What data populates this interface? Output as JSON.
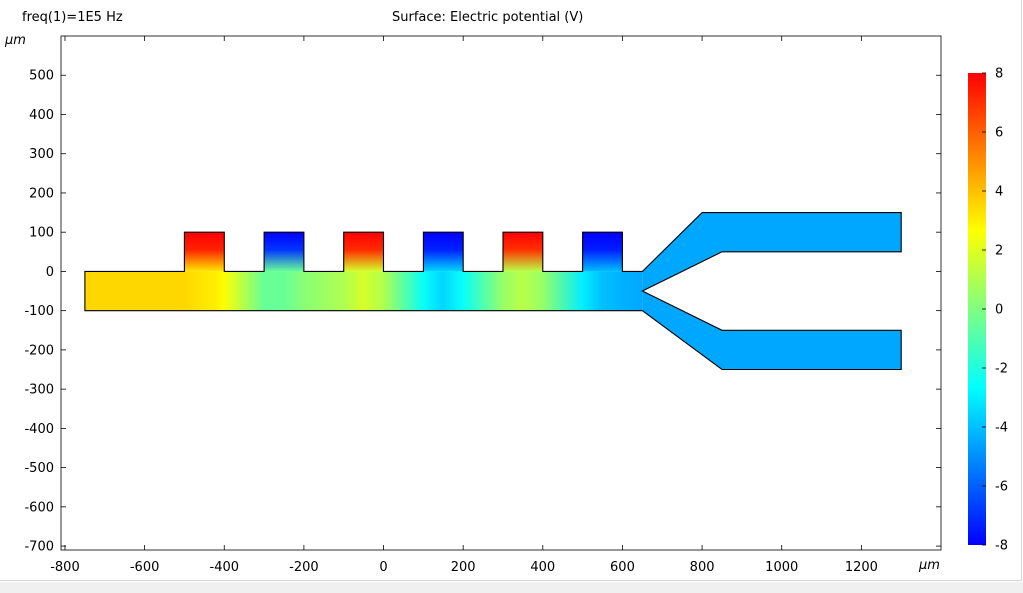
{
  "header": {
    "parameter_label": "freq(1)=1E5 Hz",
    "title": "Surface: Electric potential (V)"
  },
  "chart_data": {
    "type": "heatmap",
    "title": "Surface: Electric potential (V)",
    "parameter": "freq(1)=1E5 Hz",
    "x_unit_label": "μm",
    "y_unit_label": "μm",
    "xlim": [
      -810,
      1400
    ],
    "ylim": [
      -710,
      600
    ],
    "xticks": [
      -800,
      -600,
      -400,
      -200,
      0,
      200,
      400,
      600,
      800,
      1000,
      1200
    ],
    "yticks": [
      500,
      400,
      300,
      200,
      100,
      0,
      -100,
      -200,
      -300,
      -400,
      -500,
      -600,
      -700
    ],
    "colorbar": {
      "range": [
        -8,
        8
      ],
      "ticks": [
        8,
        6,
        4,
        2,
        0,
        -2,
        -4,
        -6,
        -8
      ],
      "colormap": "rainbow",
      "stops": [
        "#0000ff",
        "#00ffff",
        "#ffff00",
        "#ff0000"
      ]
    },
    "geometry": {
      "channel": {
        "x": [
          -750,
          650
        ],
        "y": [
          -100,
          0
        ]
      },
      "electrodes": [
        {
          "x": [
            -500,
            -400
          ],
          "y": [
            0,
            100
          ],
          "potential": 8
        },
        {
          "x": [
            -300,
            -200
          ],
          "y": [
            0,
            100
          ],
          "potential": -8
        },
        {
          "x": [
            -100,
            0
          ],
          "y": [
            0,
            100
          ],
          "potential": 8
        },
        {
          "x": [
            100,
            200
          ],
          "y": [
            0,
            100
          ],
          "potential": -8
        },
        {
          "x": [
            300,
            400
          ],
          "y": [
            0,
            100
          ],
          "potential": 8
        },
        {
          "x": [
            500,
            600
          ],
          "y": [
            0,
            100
          ],
          "potential": -8
        }
      ],
      "upper_branch": [
        [
          650,
          0
        ],
        [
          800,
          150
        ],
        [
          1300,
          150
        ],
        [
          1300,
          50
        ],
        [
          850,
          50
        ],
        [
          650,
          -50
        ]
      ],
      "lower_branch": [
        [
          650,
          -50
        ],
        [
          850,
          -150
        ],
        [
          1300,
          -150
        ],
        [
          1300,
          -250
        ],
        [
          850,
          -250
        ],
        [
          650,
          -100
        ]
      ],
      "inlet_potential": 3.5,
      "outlet_potential": -4.5
    }
  }
}
